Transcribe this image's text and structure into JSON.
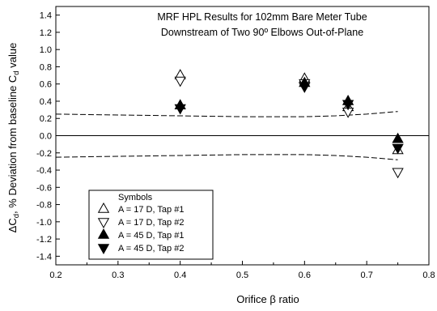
{
  "chart_data": {
    "type": "scatter",
    "title_lines": [
      "MRF HPL Results for 102mm Bare Meter Tube",
      "Downstream of Two 90º Elbows Out-of-Plane"
    ],
    "xlabel": "Orifice β ratio",
    "ylabel": "ΔC_d, % Deviation from baseline C_d value",
    "ylabel_parts": {
      "p1": "ΔC",
      "s1": "d",
      "p2": ", % Deviation from baseline C",
      "s2": "d",
      "p3": " value"
    },
    "xlim": [
      0.2,
      0.8
    ],
    "ylim": [
      -1.5,
      1.5
    ],
    "x_ticks": [
      "0.2",
      "0.3",
      "0.4",
      "0.5",
      "0.6",
      "0.7",
      "0.8"
    ],
    "y_ticks": [
      "1.4",
      "1.2",
      "1.0",
      "0.8",
      "0.6",
      "0.4",
      "0.2",
      "0.0",
      "-0.2",
      "-0.4",
      "-0.6",
      "-0.8",
      "-1.0",
      "-1.2",
      "-1.4"
    ],
    "zero_line": 0,
    "series": [
      {
        "name": "A = 17 D, Tap #1",
        "marker": "triangle-up-open",
        "points": [
          {
            "x": 0.4,
            "y": 0.7
          },
          {
            "x": 0.6,
            "y": 0.66
          },
          {
            "x": 0.67,
            "y": 0.33
          },
          {
            "x": 0.75,
            "y": -0.17
          }
        ]
      },
      {
        "name": "A = 17 D, Tap #2",
        "marker": "triangle-down-open",
        "points": [
          {
            "x": 0.4,
            "y": 0.64
          },
          {
            "x": 0.6,
            "y": 0.61
          },
          {
            "x": 0.67,
            "y": 0.28
          },
          {
            "x": 0.75,
            "y": -0.42
          }
        ]
      },
      {
        "name": "A = 45 D, Tap #1",
        "marker": "triangle-up-filled",
        "points": [
          {
            "x": 0.4,
            "y": 0.35
          },
          {
            "x": 0.6,
            "y": 0.61
          },
          {
            "x": 0.67,
            "y": 0.4
          },
          {
            "x": 0.75,
            "y": -0.04
          }
        ]
      },
      {
        "name": "A = 45 D, Tap #2",
        "marker": "triangle-down-filled",
        "points": [
          {
            "x": 0.4,
            "y": 0.32
          },
          {
            "x": 0.6,
            "y": 0.57
          },
          {
            "x": 0.67,
            "y": 0.37
          },
          {
            "x": 0.75,
            "y": -0.14
          }
        ]
      }
    ],
    "uncertainty_bands": {
      "upper": [
        {
          "x": 0.2,
          "y": 0.25
        },
        {
          "x": 0.3,
          "y": 0.24
        },
        {
          "x": 0.4,
          "y": 0.23
        },
        {
          "x": 0.5,
          "y": 0.22
        },
        {
          "x": 0.6,
          "y": 0.22
        },
        {
          "x": 0.65,
          "y": 0.23
        },
        {
          "x": 0.7,
          "y": 0.25
        },
        {
          "x": 0.75,
          "y": 0.28
        }
      ],
      "lower": [
        {
          "x": 0.2,
          "y": -0.25
        },
        {
          "x": 0.3,
          "y": -0.24
        },
        {
          "x": 0.4,
          "y": -0.23
        },
        {
          "x": 0.5,
          "y": -0.22
        },
        {
          "x": 0.6,
          "y": -0.22
        },
        {
          "x": 0.65,
          "y": -0.23
        },
        {
          "x": 0.7,
          "y": -0.25
        },
        {
          "x": 0.75,
          "y": -0.28
        }
      ]
    },
    "legend": {
      "title": "Symbols",
      "placement": "bottom-left"
    },
    "grid": false
  }
}
